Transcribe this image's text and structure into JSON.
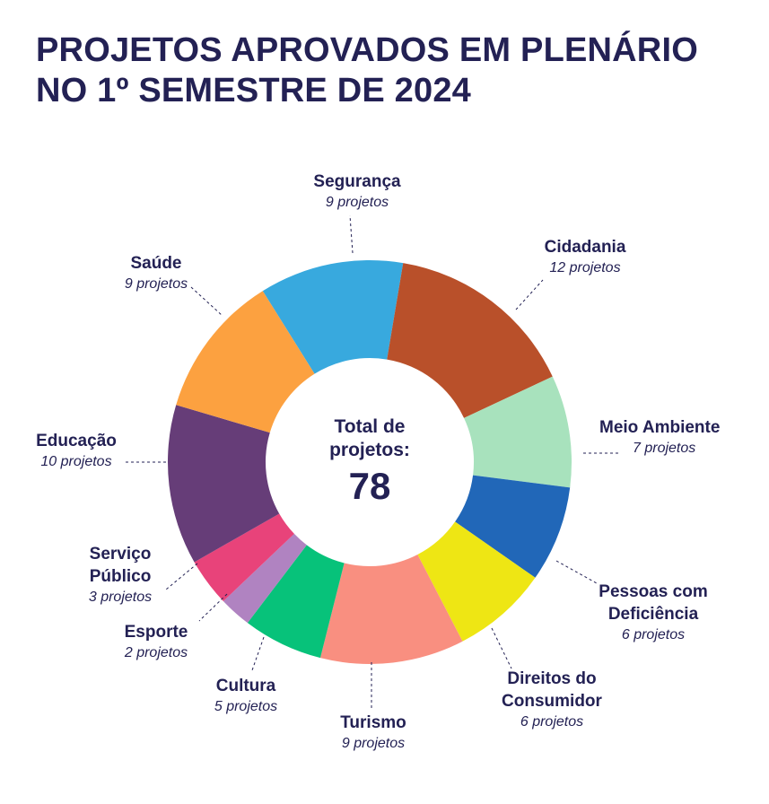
{
  "title": {
    "line1": "PROJETOS APROVADOS EM PLENÁRIO",
    "line2": "NO 1º SEMESTRE DE 2024"
  },
  "center": {
    "label_line1": "Total de",
    "label_line2": "projetos:",
    "value": "78"
  },
  "chart_data": {
    "type": "pie",
    "variant": "donut",
    "title": "PROJETOS APROVADOS EM PLENÁRIO NO 1º SEMESTRE DE 2024",
    "total": 78,
    "slices": [
      {
        "name": "Segurança",
        "lines": [
          "Segurança"
        ],
        "value": 9,
        "count_label": "9 projetos",
        "color": "#38a9de"
      },
      {
        "name": "Cidadania",
        "lines": [
          "Cidadania"
        ],
        "value": 12,
        "count_label": "12 projetos",
        "color": "#b9502a"
      },
      {
        "name": "Meio Ambiente",
        "lines": [
          "Meio Ambiente"
        ],
        "value": 7,
        "count_label": "7 projetos",
        "color": "#a8e2bd"
      },
      {
        "name": "Pessoas com Deficiência",
        "lines": [
          "Pessoas com",
          "Deficiência"
        ],
        "value": 6,
        "count_label": "6 projetos",
        "color": "#2167b8"
      },
      {
        "name": "Direitos do Consumidor",
        "lines": [
          "Direitos do",
          "Consumidor"
        ],
        "value": 6,
        "count_label": "6 projetos",
        "color": "#eee614"
      },
      {
        "name": "Turismo",
        "lines": [
          "Turismo"
        ],
        "value": 9,
        "count_label": "9 projetos",
        "color": "#f98f80"
      },
      {
        "name": "Cultura",
        "lines": [
          "Cultura"
        ],
        "value": 5,
        "count_label": "5 projetos",
        "color": "#07c27a"
      },
      {
        "name": "Esporte",
        "lines": [
          "Esporte"
        ],
        "value": 2,
        "count_label": "2 projetos",
        "color": "#b083c1"
      },
      {
        "name": "Serviço Público",
        "lines": [
          "Serviço",
          "Público"
        ],
        "value": 3,
        "count_label": "3 projetos",
        "color": "#e8437a"
      },
      {
        "name": "Educação",
        "lines": [
          "Educação"
        ],
        "value": 10,
        "count_label": "10 projetos",
        "color": "#663d78"
      },
      {
        "name": "Saúde",
        "lines": [
          "Saúde"
        ],
        "value": 9,
        "count_label": "9 projetos",
        "color": "#fca140"
      }
    ]
  }
}
